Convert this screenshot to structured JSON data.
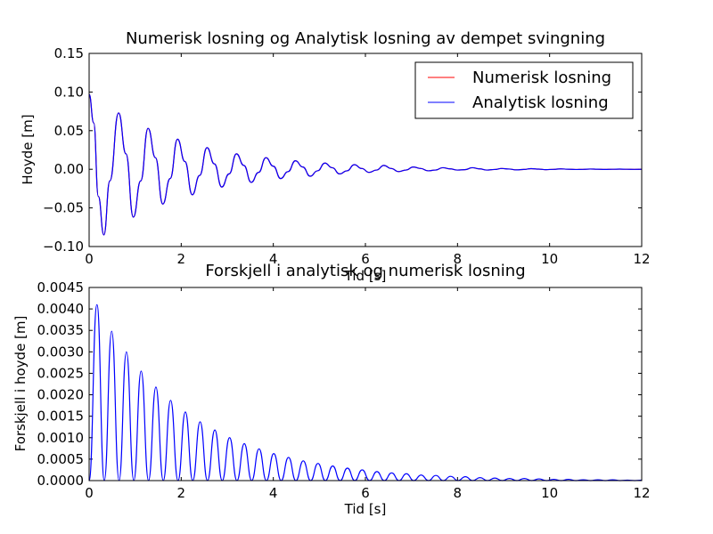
{
  "chart_data": [
    {
      "type": "line",
      "title": "Numerisk losning og Analytisk losning av dempet svingning",
      "xlabel": "Tid [s]",
      "ylabel": "Hoyde [m]",
      "xlim": [
        0,
        12
      ],
      "ylim": [
        -0.1,
        0.15
      ],
      "xticks": [
        "0",
        "2",
        "4",
        "6",
        "8",
        "10",
        "12"
      ],
      "yticks": [
        "−0.10",
        "−0.05",
        "0.00",
        "0.05",
        "0.10",
        "0.15"
      ],
      "grid": false,
      "legend_position": "upper right",
      "series": [
        {
          "name": "Numerisk losning",
          "color": "#ff0000",
          "x": [
            0,
            0.1,
            0.2,
            0.32,
            0.45,
            0.64,
            0.8,
            0.96,
            1.12,
            1.28,
            1.44,
            1.6,
            1.76,
            1.92,
            2.08,
            2.24,
            2.4,
            2.56,
            2.72,
            2.88,
            3.04,
            3.2,
            3.36,
            3.52,
            3.68,
            3.84,
            4.0,
            4.16,
            4.32,
            4.48,
            4.64,
            4.8,
            4.96,
            5.12,
            5.28,
            5.44,
            5.6,
            5.76,
            5.92,
            6.08,
            6.24,
            6.4,
            6.56,
            6.72,
            6.88,
            7.04,
            7.2,
            7.36,
            7.52,
            7.68,
            7.84,
            8.0,
            8.16,
            8.32,
            8.48,
            8.64,
            8.8,
            8.96,
            9.12,
            9.28,
            9.44,
            9.6,
            9.76,
            9.92,
            10.08,
            10.24,
            10.4,
            10.56,
            10.72,
            10.88,
            11.04,
            11.2,
            11.36,
            11.52,
            11.68,
            11.84,
            12.0
          ],
          "y": [
            0.097,
            0.06,
            -0.035,
            -0.085,
            -0.015,
            0.073,
            0.02,
            -0.062,
            -0.015,
            0.053,
            0.015,
            -0.045,
            -0.012,
            0.039,
            0.01,
            -0.033,
            -0.008,
            0.028,
            0.007,
            -0.023,
            -0.006,
            0.02,
            0.005,
            -0.017,
            -0.004,
            0.015,
            0.004,
            -0.012,
            -0.003,
            0.011,
            0.003,
            -0.009,
            -0.002,
            0.008,
            0.002,
            -0.006,
            -0.002,
            0.006,
            0.001,
            -0.004,
            -0.001,
            0.005,
            0.001,
            -0.003,
            -0.001,
            0.003,
            0.001,
            -0.002,
            -0.001,
            0.002,
            0.0005,
            -0.001,
            -0.0005,
            0.002,
            0.0005,
            -0.001,
            -0.0003,
            0.001,
            0.0003,
            -0.0008,
            -0.0002,
            0.0008,
            0.0002,
            -0.0005,
            -0.0001,
            0.0005,
            0.0001,
            -0.0003,
            -0.0001,
            0.0003,
            0.0001,
            -0.0002,
            0.0,
            0.0002,
            0.0,
            -0.0001,
            0.0
          ]
        },
        {
          "name": "Analytisk losning",
          "color": "#0000ff",
          "x": [
            0,
            0.1,
            0.2,
            0.32,
            0.45,
            0.64,
            0.8,
            0.96,
            1.12,
            1.28,
            1.44,
            1.6,
            1.76,
            1.92,
            2.08,
            2.24,
            2.4,
            2.56,
            2.72,
            2.88,
            3.04,
            3.2,
            3.36,
            3.52,
            3.68,
            3.84,
            4.0,
            4.16,
            4.32,
            4.48,
            4.64,
            4.8,
            4.96,
            5.12,
            5.28,
            5.44,
            5.6,
            5.76,
            5.92,
            6.08,
            6.24,
            6.4,
            6.56,
            6.72,
            6.88,
            7.04,
            7.2,
            7.36,
            7.52,
            7.68,
            7.84,
            8.0,
            8.16,
            8.32,
            8.48,
            8.64,
            8.8,
            8.96,
            9.12,
            9.28,
            9.44,
            9.6,
            9.76,
            9.92,
            10.08,
            10.24,
            10.4,
            10.56,
            10.72,
            10.88,
            11.04,
            11.2,
            11.36,
            11.52,
            11.68,
            11.84,
            12.0
          ],
          "y": [
            0.097,
            0.06,
            -0.035,
            -0.085,
            -0.015,
            0.073,
            0.02,
            -0.062,
            -0.015,
            0.053,
            0.015,
            -0.045,
            -0.012,
            0.039,
            0.01,
            -0.033,
            -0.008,
            0.028,
            0.007,
            -0.023,
            -0.006,
            0.02,
            0.005,
            -0.017,
            -0.004,
            0.015,
            0.004,
            -0.012,
            -0.003,
            0.011,
            0.003,
            -0.009,
            -0.002,
            0.008,
            0.002,
            -0.006,
            -0.002,
            0.006,
            0.001,
            -0.004,
            -0.001,
            0.005,
            0.001,
            -0.003,
            -0.001,
            0.003,
            0.001,
            -0.002,
            -0.001,
            0.002,
            0.0005,
            -0.001,
            -0.0005,
            0.002,
            0.0005,
            -0.001,
            -0.0003,
            0.001,
            0.0003,
            -0.0008,
            -0.0002,
            0.0008,
            0.0002,
            -0.0005,
            -0.0001,
            0.0005,
            0.0001,
            -0.0003,
            -0.0001,
            0.0003,
            0.0001,
            -0.0002,
            0.0,
            0.0002,
            0.0,
            -0.0001,
            0.0
          ]
        }
      ]
    },
    {
      "type": "line",
      "title": "Forskjell i analytisk og numerisk losning",
      "xlabel": "Tid [s]",
      "ylabel": "Forskjell i hoyde [m]",
      "xlim": [
        0,
        12
      ],
      "ylim": [
        0,
        0.0045
      ],
      "xticks": [
        "0",
        "2",
        "4",
        "6",
        "8",
        "10",
        "12"
      ],
      "yticks": [
        "0.0000",
        "0.0005",
        "0.0010",
        "0.0015",
        "0.0020",
        "0.0025",
        "0.0030",
        "0.0035",
        "0.0040",
        "0.0045"
      ],
      "grid": false,
      "series": [
        {
          "color": "#0000ff",
          "x": [
            0,
            0.17,
            0.33,
            0.49,
            0.65,
            0.81,
            0.97,
            1.13,
            1.29,
            1.45,
            1.61,
            1.77,
            1.93,
            2.09,
            2.25,
            2.41,
            2.57,
            2.73,
            2.89,
            3.05,
            3.21,
            3.37,
            3.53,
            3.69,
            3.85,
            4.01,
            4.17,
            4.33,
            4.49,
            4.65,
            4.81,
            4.97,
            5.13,
            5.29,
            5.45,
            5.61,
            5.77,
            5.93,
            6.09,
            6.25,
            6.41,
            6.57,
            6.73,
            6.89,
            7.05,
            7.21,
            7.37,
            7.53,
            7.69,
            7.85,
            8.01,
            8.17,
            8.33,
            8.49,
            8.65,
            8.81,
            8.97,
            9.13,
            9.29,
            9.45,
            9.61,
            9.77,
            9.93,
            10.09,
            10.25,
            10.41,
            10.57,
            10.73,
            10.89,
            11.05,
            11.21,
            11.37,
            11.53,
            11.69,
            11.85,
            12.0
          ],
          "y": [
            0.0,
            0.0041,
            0.0,
            0.00348,
            0.0,
            0.003,
            0.0,
            0.00255,
            0.0,
            0.00218,
            0.0,
            0.00187,
            0.0,
            0.0016,
            0.0,
            0.00137,
            0.0,
            0.00118,
            0.0,
            0.001,
            0.0,
            0.00086,
            0.0,
            0.00074,
            0.0,
            0.00063,
            0.0,
            0.00054,
            0.0,
            0.00046,
            0.0,
            0.0004,
            0.0,
            0.00034,
            0.0,
            0.00029,
            0.0,
            0.00025,
            0.0,
            0.00021,
            0.0,
            0.00018,
            0.0,
            0.00016,
            0.0,
            0.00013,
            0.0,
            0.00012,
            0.0,
            0.0001,
            0.0,
            9e-05,
            0.0,
            7e-05,
            0.0,
            6e-05,
            0.0,
            5e-05,
            0.0,
            5e-05,
            0.0,
            4e-05,
            0.0,
            3e-05,
            0.0,
            3e-05,
            0.0,
            2e-05,
            0.0,
            2e-05,
            0.0,
            2e-05,
            0.0,
            1e-05,
            0.0,
            1e-05
          ]
        }
      ]
    }
  ]
}
